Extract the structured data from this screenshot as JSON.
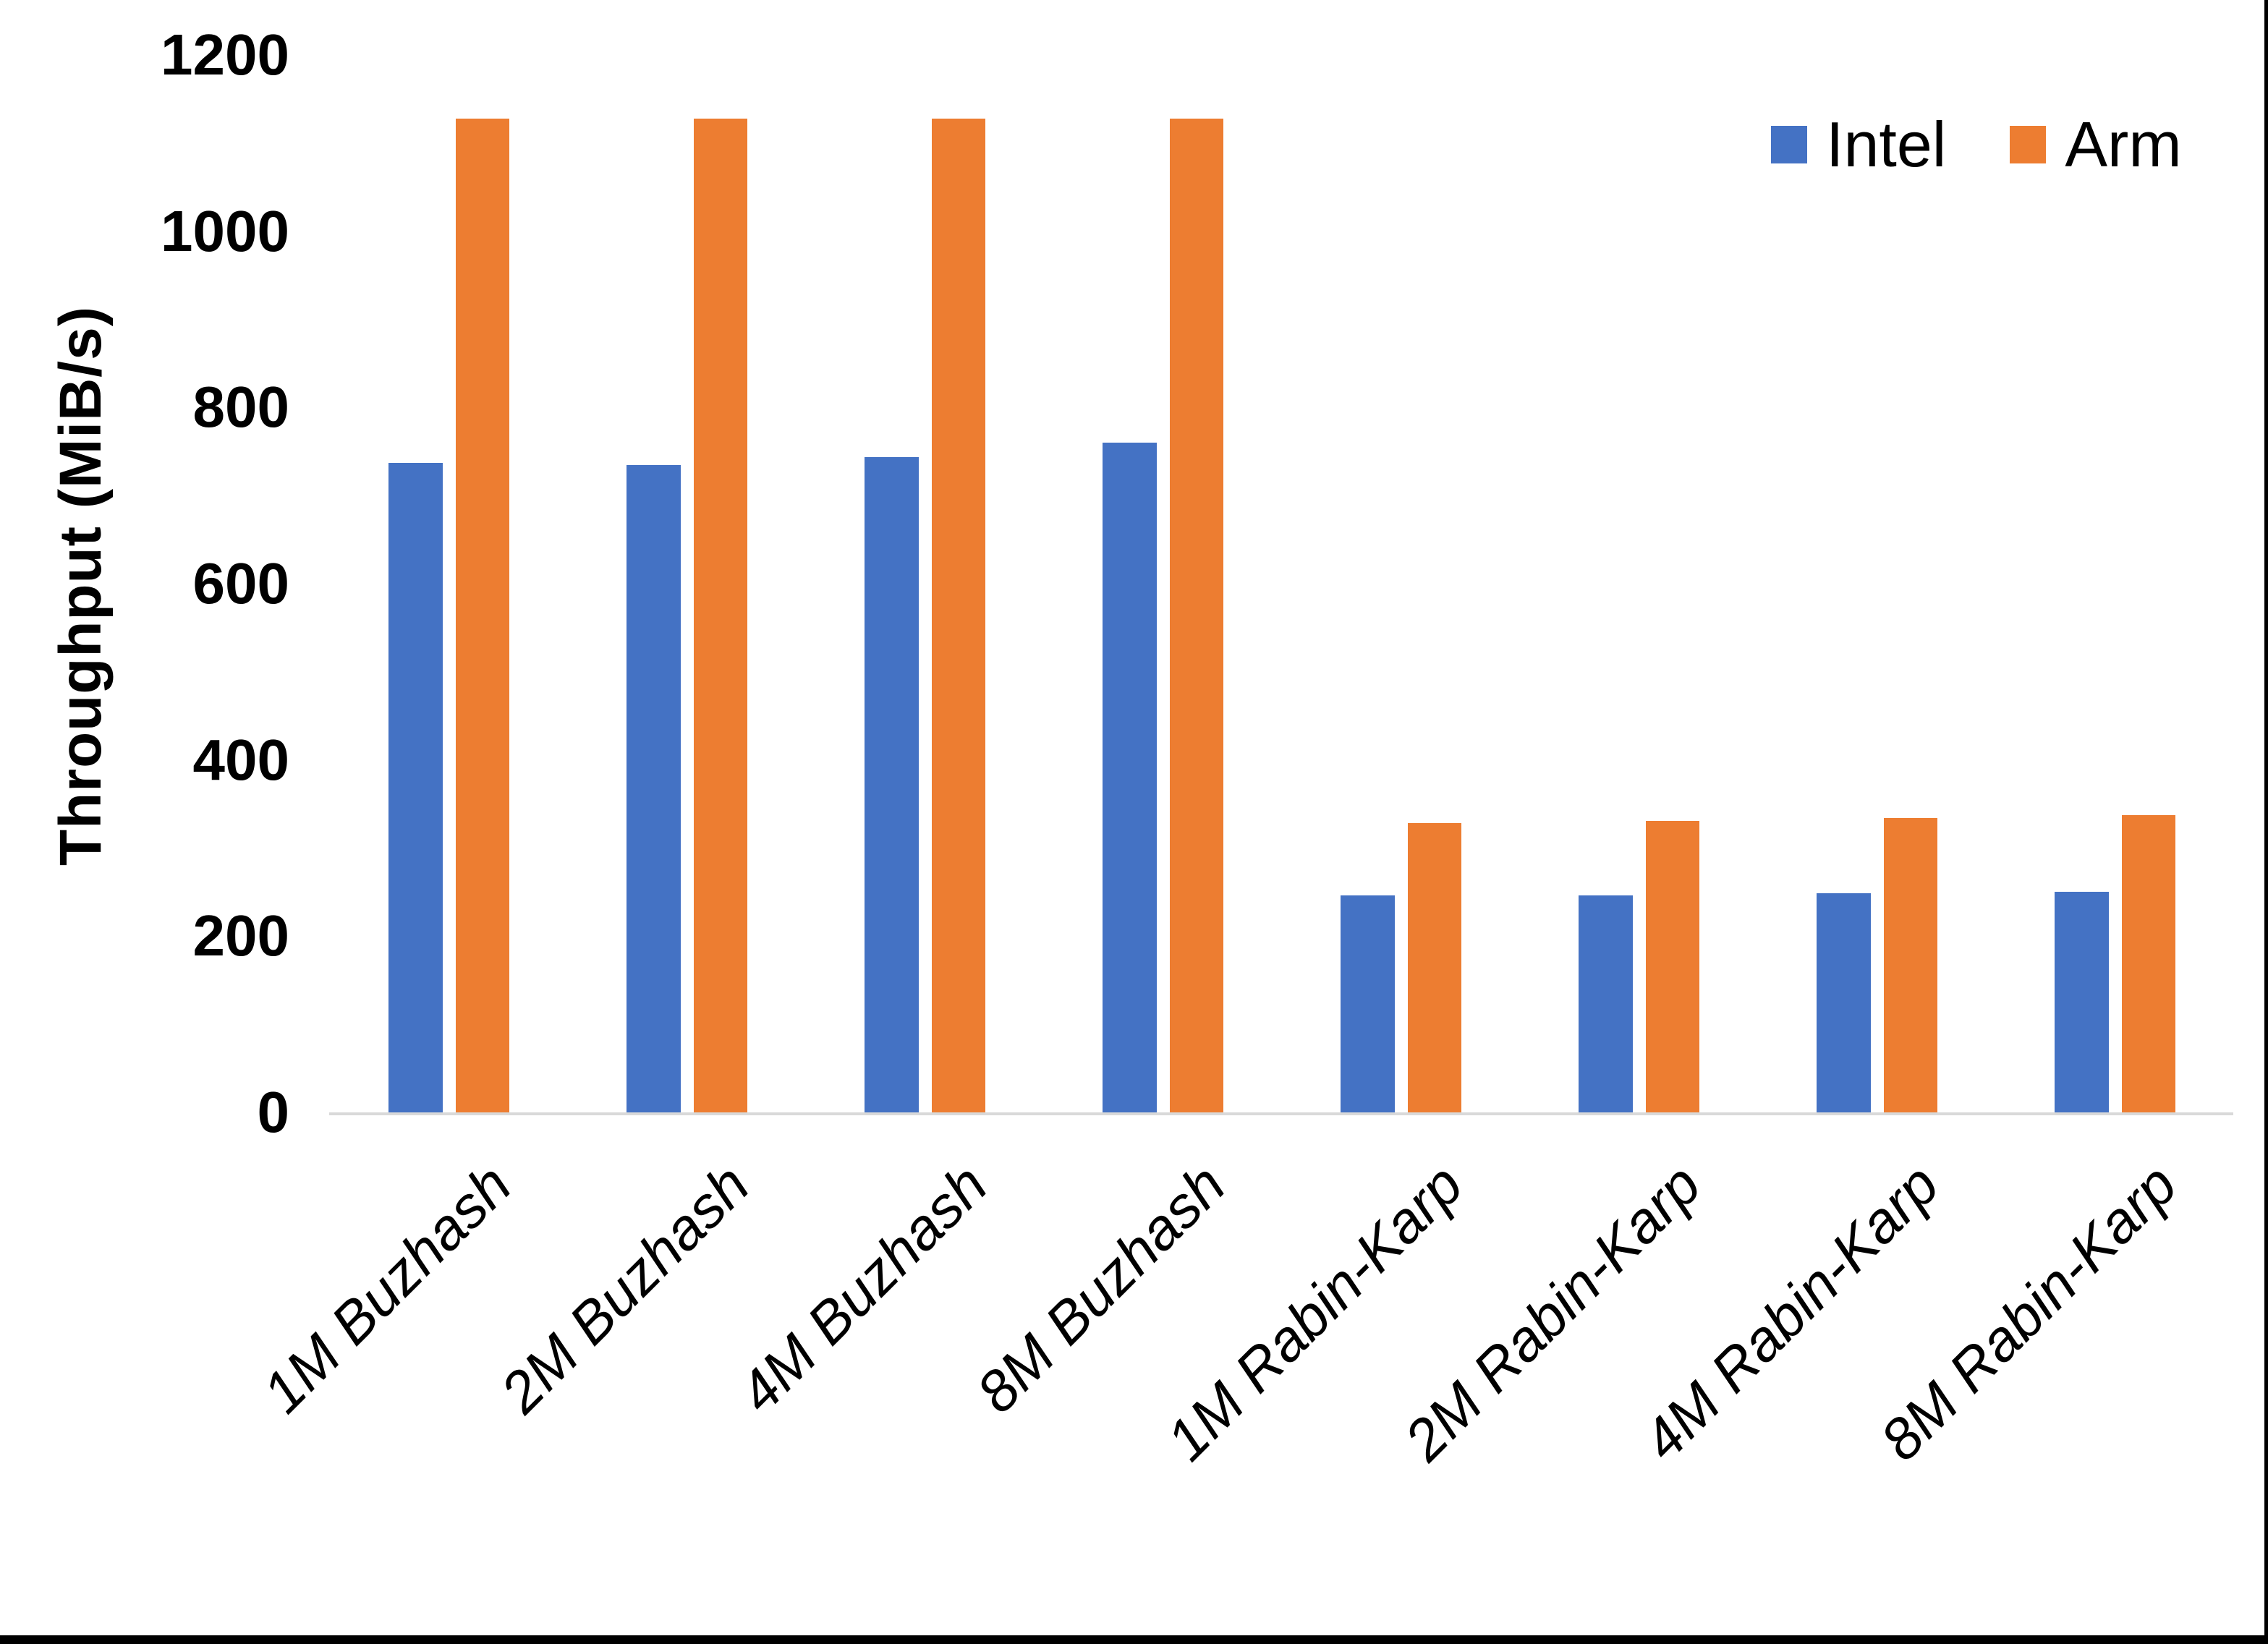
{
  "chart_data": {
    "type": "bar",
    "title": "",
    "xlabel": "",
    "ylabel": "Throughput (MiB/s)",
    "ylim": [
      0,
      1200
    ],
    "yticks": [
      0,
      200,
      400,
      600,
      800,
      1000,
      1200
    ],
    "grid": false,
    "legend_position": "top-right",
    "categories": [
      "1M Buzhash",
      "2M Buzhash",
      "4M Buzhash",
      "8M Buzhash",
      "1M Rabin-Karp",
      "2M Rabin-Karp",
      "4M Rabin-Karp",
      "8M Rabin-Karp"
    ],
    "series": [
      {
        "name": "Intel",
        "color": "#4472C4",
        "values": [
          737,
          735,
          744,
          760,
          246,
          246,
          249,
          250
        ]
      },
      {
        "name": "Arm",
        "color": "#ED7D31",
        "values": [
          1128,
          1128,
          1128,
          1128,
          328,
          331,
          334,
          337
        ]
      }
    ]
  },
  "axis": {
    "line_color": "#d9d9d9",
    "text_color": "#000000"
  },
  "frame": {
    "bottom_bar_color": "#000000",
    "right_bar_color": "#000000"
  }
}
